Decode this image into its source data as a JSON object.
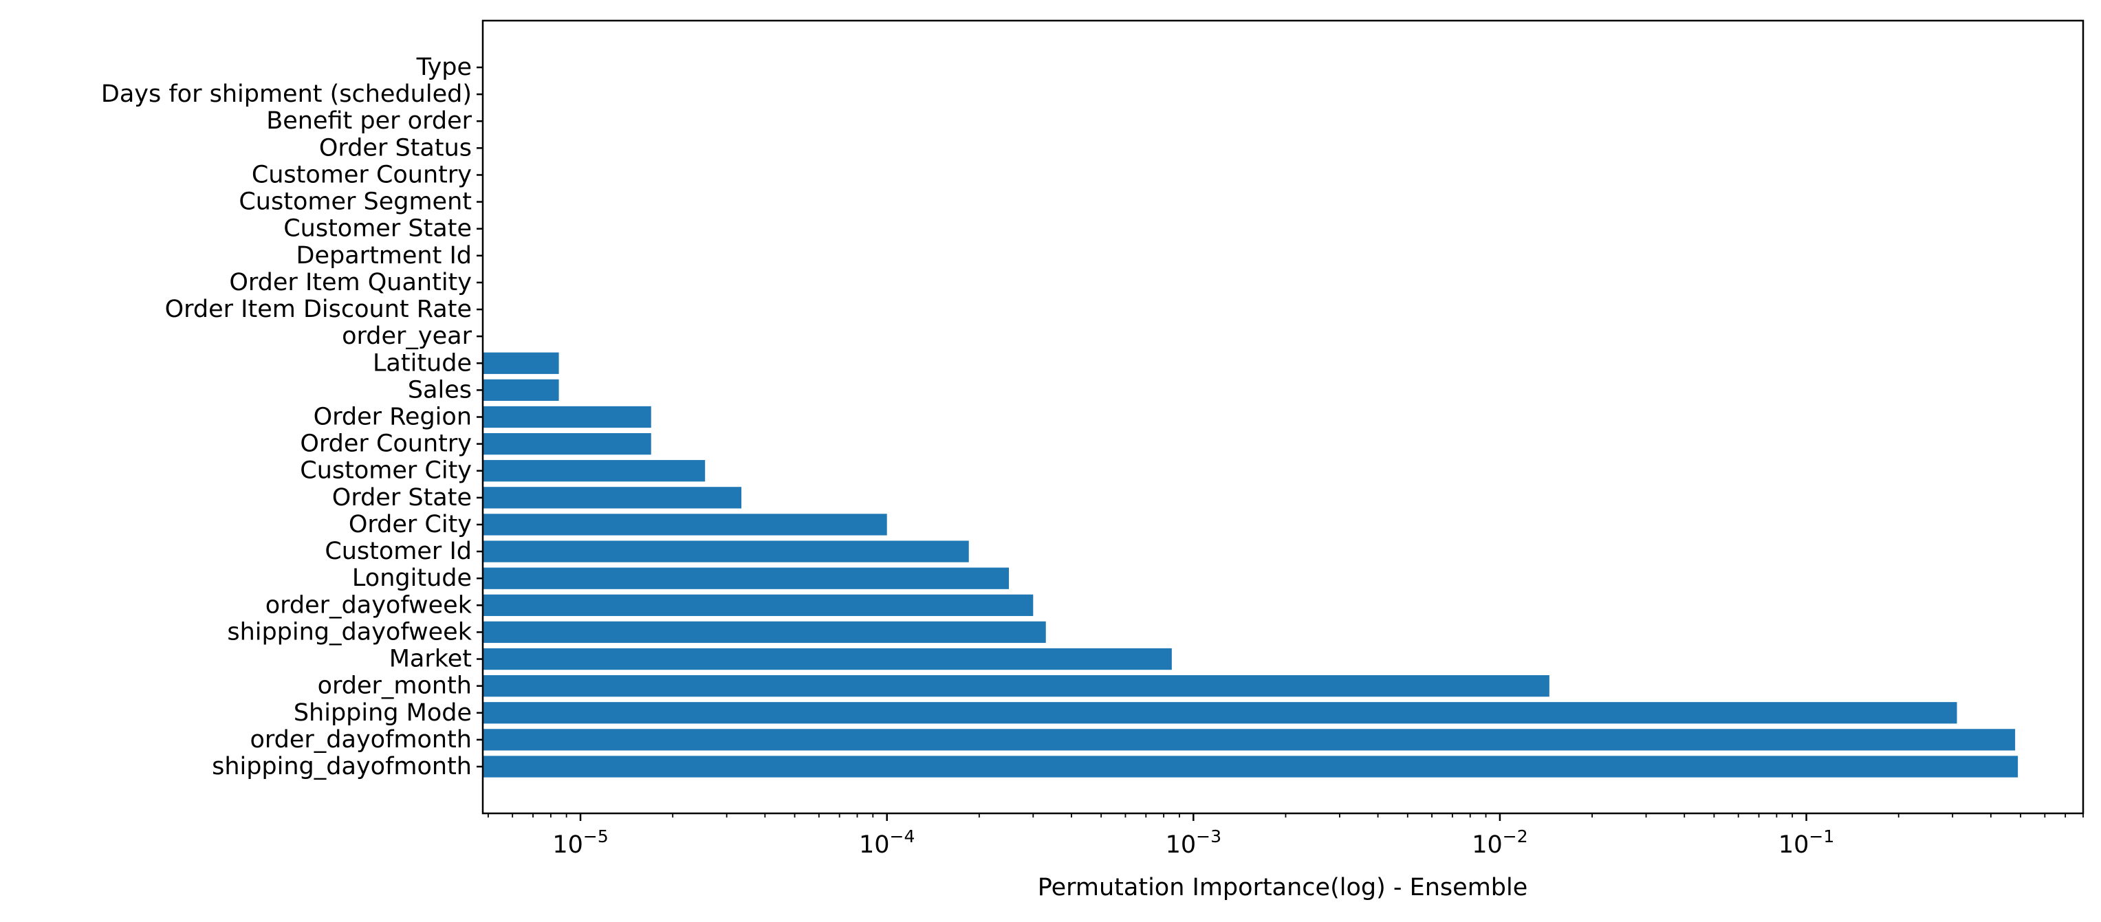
{
  "chart_data": {
    "type": "bar",
    "orientation": "horizontal",
    "xscale": "log",
    "xlabel": "Permutation Importance(log) - Ensemble",
    "ylabel": "",
    "title": "",
    "xlim": [
      4.8e-06,
      0.8
    ],
    "grid": false,
    "bar_color": "#1f77b4",
    "xticks": [
      {
        "value": 1e-05,
        "base": "10",
        "exp": "−5"
      },
      {
        "value": 0.0001,
        "base": "10",
        "exp": "−4"
      },
      {
        "value": 0.001,
        "base": "10",
        "exp": "−3"
      },
      {
        "value": 0.01,
        "base": "10",
        "exp": "−2"
      },
      {
        "value": 0.1,
        "base": "10",
        "exp": "−1"
      }
    ],
    "categories": [
      "shipping_dayofmonth",
      "order_dayofmonth",
      "Shipping Mode",
      "order_month",
      "Market",
      "shipping_dayofweek",
      "order_dayofweek",
      "Longitude",
      "Customer Id",
      "Order City",
      "Order State",
      "Customer City",
      "Order Country",
      "Order Region",
      "Sales",
      "Latitude",
      "order_year",
      "Order Item Discount Rate",
      "Order Item Quantity",
      "Department Id",
      "Customer State",
      "Customer Segment",
      "Customer Country",
      "Order Status",
      "Benefit per order",
      "Days for shipment (scheduled)",
      "Type"
    ],
    "values": [
      0.49,
      0.48,
      0.31,
      0.0145,
      0.00085,
      0.00033,
      0.0003,
      0.00025,
      0.000185,
      0.0001,
      3.35e-05,
      2.55e-05,
      1.7e-05,
      1.7e-05,
      8.5e-06,
      8.5e-06,
      0,
      0,
      0,
      0,
      0,
      0,
      0,
      0,
      0,
      0,
      0
    ]
  }
}
